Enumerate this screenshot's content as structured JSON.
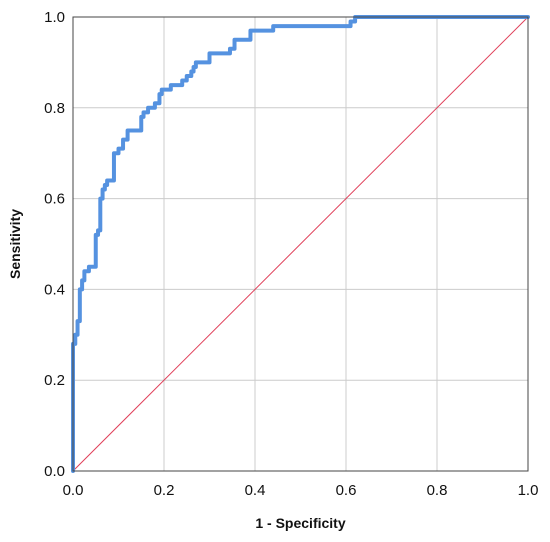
{
  "chart_data": {
    "type": "line",
    "xlabel": "1 - Specificity",
    "ylabel": "Sensitivity",
    "xlim": [
      0.0,
      1.0
    ],
    "ylim": [
      0.0,
      1.0
    ],
    "x_ticks": [
      "0.0",
      "0.2",
      "0.4",
      "0.6",
      "0.8",
      "1.0"
    ],
    "y_ticks": [
      "0.0",
      "0.2",
      "0.4",
      "0.6",
      "0.8",
      "1.0"
    ],
    "grid": true,
    "series": [
      {
        "color": "#5592e0",
        "points": [
          [
            0.0,
            0.0
          ],
          [
            0.0,
            0.28
          ],
          [
            0.005,
            0.28
          ],
          [
            0.005,
            0.3
          ],
          [
            0.01,
            0.3
          ],
          [
            0.01,
            0.33
          ],
          [
            0.015,
            0.33
          ],
          [
            0.015,
            0.4
          ],
          [
            0.02,
            0.4
          ],
          [
            0.02,
            0.42
          ],
          [
            0.025,
            0.42
          ],
          [
            0.025,
            0.44
          ],
          [
            0.035,
            0.44
          ],
          [
            0.035,
            0.45
          ],
          [
            0.05,
            0.45
          ],
          [
            0.05,
            0.52
          ],
          [
            0.055,
            0.52
          ],
          [
            0.055,
            0.53
          ],
          [
            0.06,
            0.53
          ],
          [
            0.06,
            0.6
          ],
          [
            0.065,
            0.6
          ],
          [
            0.065,
            0.62
          ],
          [
            0.07,
            0.62
          ],
          [
            0.07,
            0.63
          ],
          [
            0.075,
            0.63
          ],
          [
            0.075,
            0.64
          ],
          [
            0.09,
            0.64
          ],
          [
            0.09,
            0.7
          ],
          [
            0.1,
            0.7
          ],
          [
            0.1,
            0.71
          ],
          [
            0.11,
            0.71
          ],
          [
            0.11,
            0.73
          ],
          [
            0.12,
            0.73
          ],
          [
            0.12,
            0.75
          ],
          [
            0.15,
            0.75
          ],
          [
            0.15,
            0.78
          ],
          [
            0.155,
            0.78
          ],
          [
            0.155,
            0.79
          ],
          [
            0.165,
            0.79
          ],
          [
            0.165,
            0.8
          ],
          [
            0.18,
            0.8
          ],
          [
            0.18,
            0.81
          ],
          [
            0.19,
            0.81
          ],
          [
            0.19,
            0.83
          ],
          [
            0.195,
            0.83
          ],
          [
            0.195,
            0.84
          ],
          [
            0.215,
            0.84
          ],
          [
            0.215,
            0.85
          ],
          [
            0.24,
            0.85
          ],
          [
            0.24,
            0.86
          ],
          [
            0.25,
            0.86
          ],
          [
            0.25,
            0.87
          ],
          [
            0.26,
            0.87
          ],
          [
            0.26,
            0.88
          ],
          [
            0.265,
            0.88
          ],
          [
            0.265,
            0.89
          ],
          [
            0.27,
            0.89
          ],
          [
            0.27,
            0.9
          ],
          [
            0.3,
            0.9
          ],
          [
            0.3,
            0.92
          ],
          [
            0.345,
            0.92
          ],
          [
            0.345,
            0.93
          ],
          [
            0.355,
            0.93
          ],
          [
            0.355,
            0.95
          ],
          [
            0.39,
            0.95
          ],
          [
            0.39,
            0.97
          ],
          [
            0.44,
            0.97
          ],
          [
            0.44,
            0.98
          ],
          [
            0.61,
            0.98
          ],
          [
            0.61,
            0.99
          ],
          [
            0.62,
            0.99
          ],
          [
            0.62,
            1.0
          ],
          [
            1.0,
            1.0
          ]
        ]
      },
      {
        "color": "#e0405a",
        "points": [
          [
            0.0,
            0.0
          ],
          [
            1.0,
            1.0
          ]
        ]
      }
    ]
  }
}
